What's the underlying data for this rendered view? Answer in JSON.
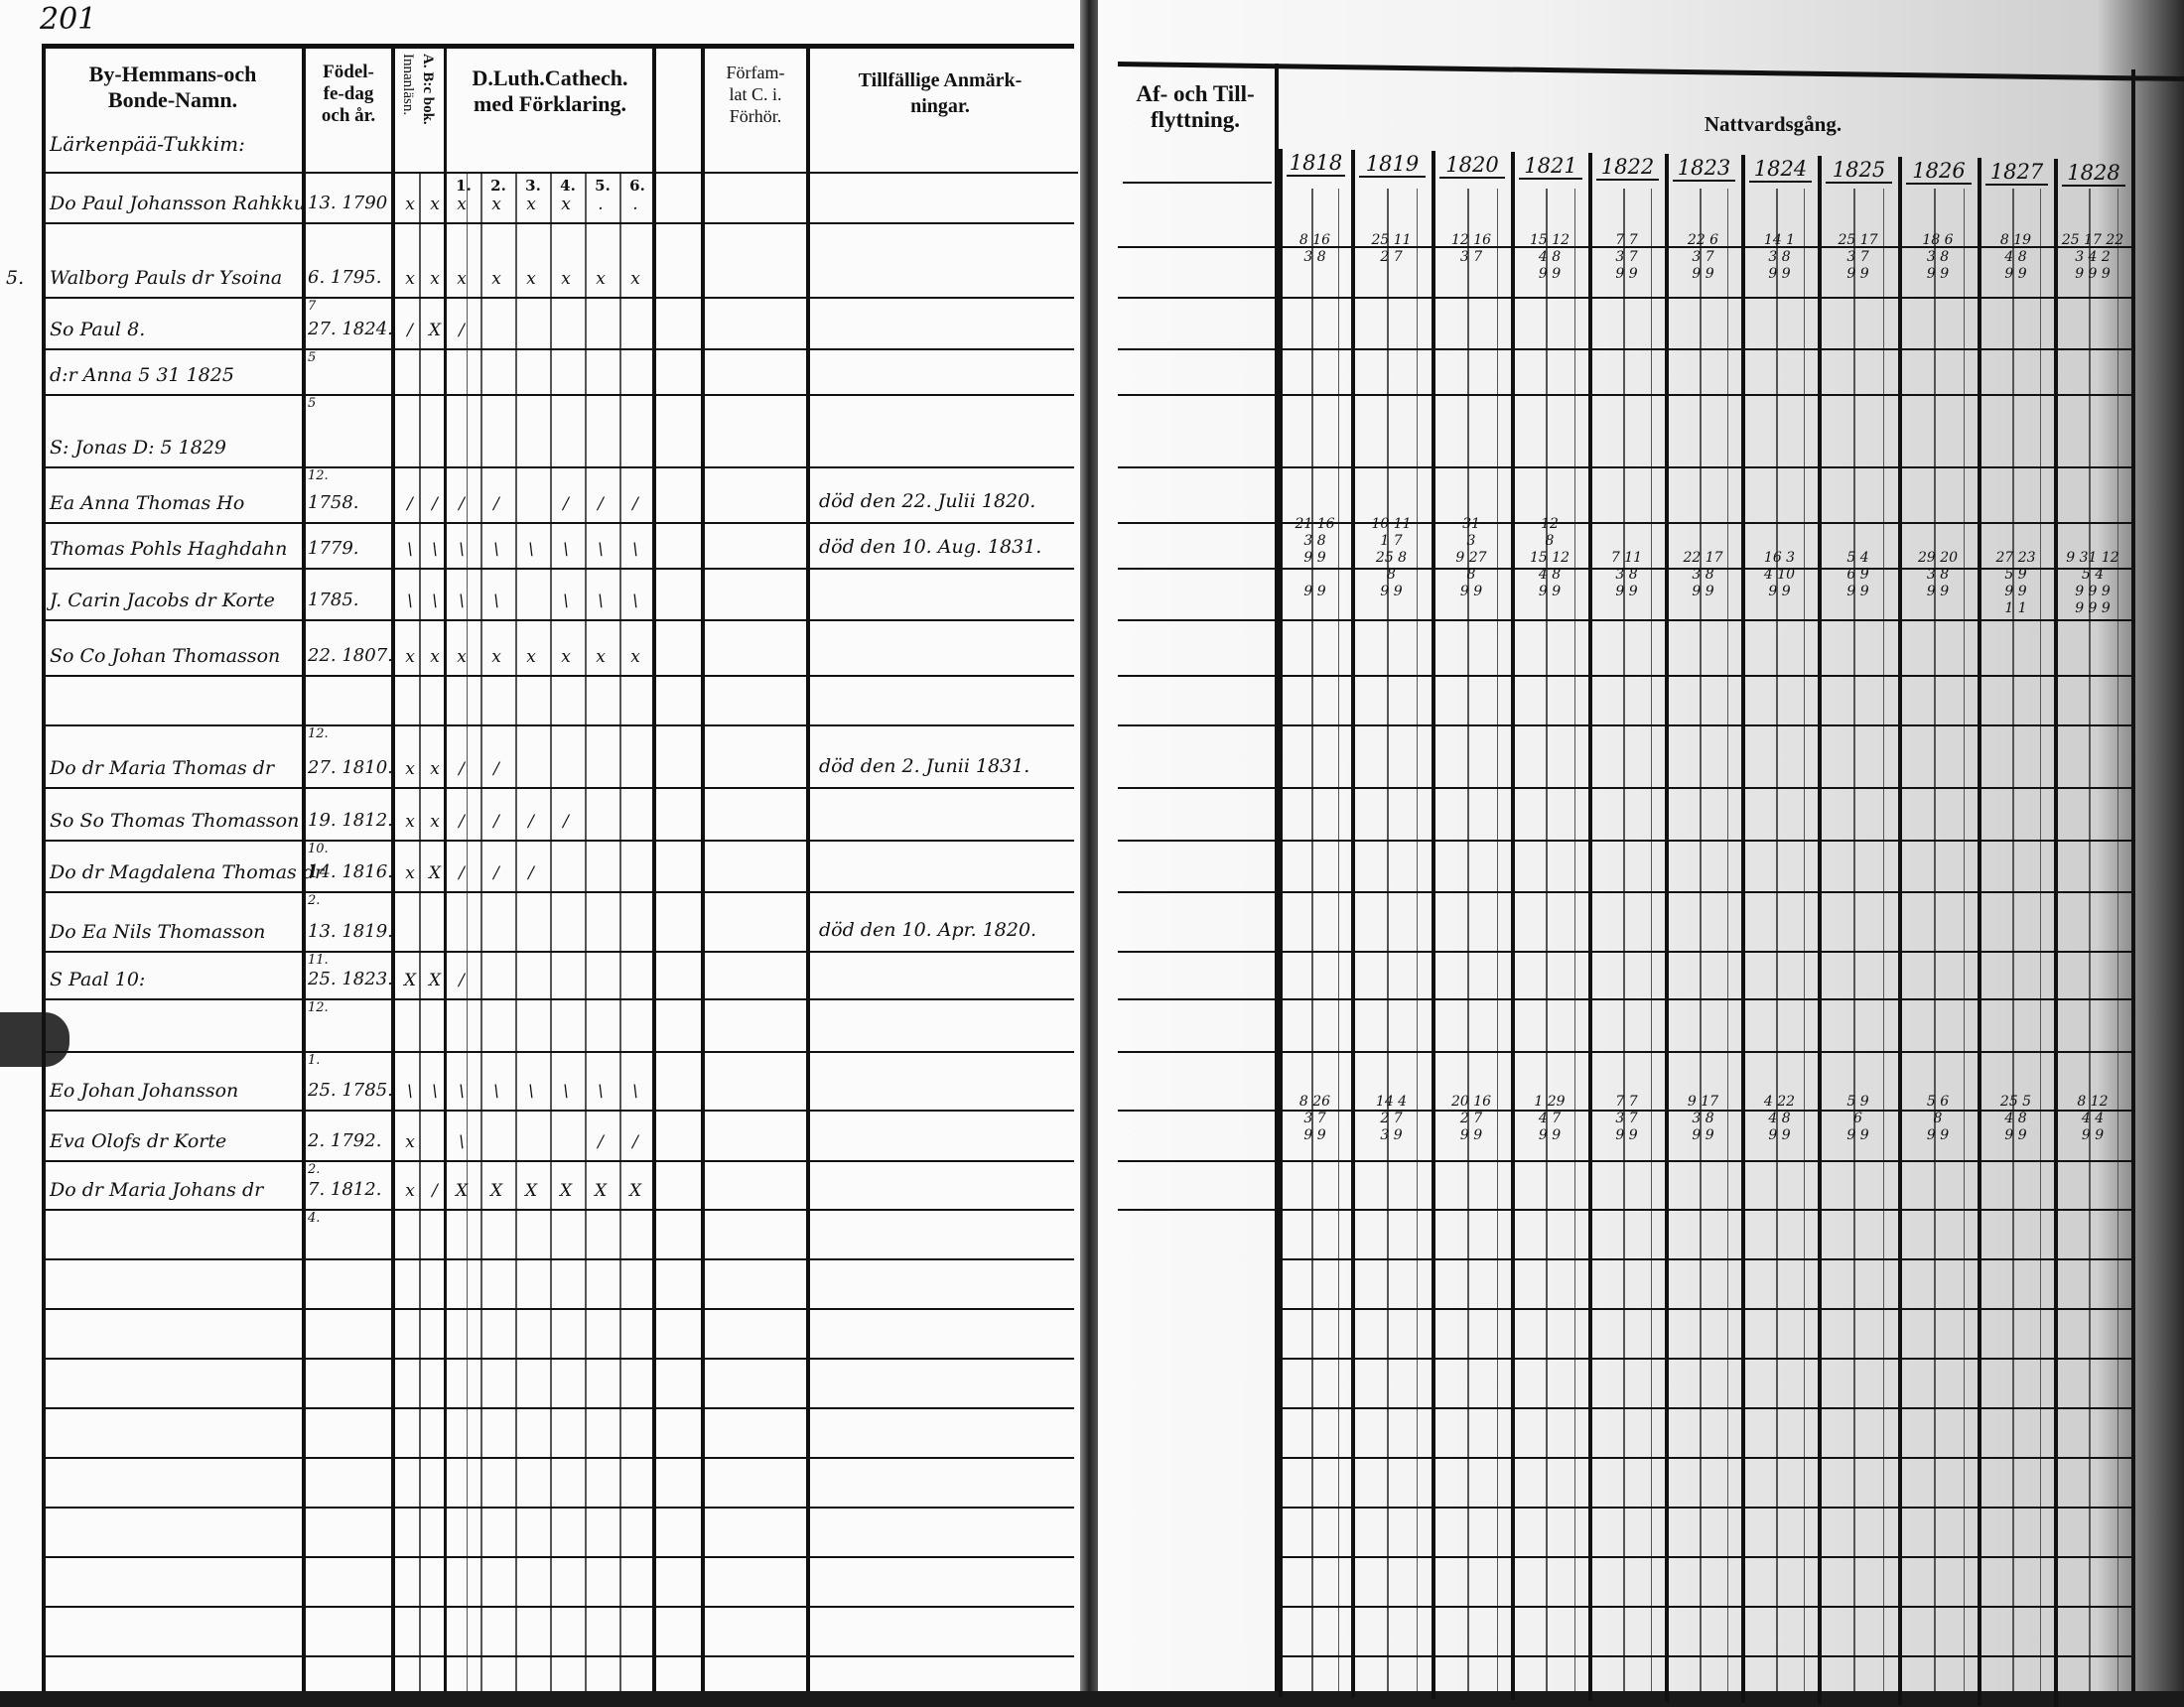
{
  "page_number": "201",
  "left": {
    "headers": {
      "name": [
        "By-Hemmans-och",
        "Bonde-Namn."
      ],
      "birth": [
        "Födel-",
        "fe-dag",
        "och år."
      ],
      "reading": [
        "A. B:c bok.",
        "Innanläsn."
      ],
      "catechism": [
        "D.Luth.Cathech.",
        "med Förklaring."
      ],
      "catechism_parts": [
        "1.",
        "2.",
        "3.",
        "4.",
        "5.",
        "6."
      ],
      "confirmation": [
        "Förfam-",
        "lat C. i.",
        "Förhör."
      ],
      "remarks": [
        "Tillfällige Anmärk-",
        "ningar."
      ]
    },
    "section_title": "Lärkenpää-Tukkim:",
    "rows": [
      {
        "name": "Do Paul Johansson Rahkku",
        "date": "13. 1790",
        "month": "",
        "marks": [
          "x",
          "x",
          "x",
          "x",
          "x",
          "x",
          ".",
          "."
        ],
        "remark": ""
      },
      {
        "name": "Walborg Pauls dr Ysoina",
        "date": "6. 1795.",
        "month": "7",
        "marks": [
          "x",
          "x",
          "x",
          "x",
          "x",
          "x",
          "x",
          "x"
        ],
        "remark": "",
        "margin": "5."
      },
      {
        "name": "So Paul 8.",
        "date": "27. 1824.",
        "month": "5",
        "marks": [
          "/",
          "X",
          "/",
          "",
          "",
          "",
          "",
          ""
        ],
        "remark": ""
      },
      {
        "name": "d:r Anna 5 31 1825",
        "date": "",
        "month": "5",
        "marks": [
          "",
          "",
          "",
          "",
          "",
          "",
          "",
          ""
        ],
        "remark": ""
      },
      {
        "name": "S: Jonas D: 5 1829",
        "date": "",
        "month": "12.",
        "marks": [
          "",
          "",
          "",
          "",
          "",
          "",
          "",
          ""
        ],
        "remark": ""
      },
      {
        "name": "Ea Anna Thomas Ho",
        "date": "1758.",
        "month": "",
        "marks": [
          "/",
          "/",
          "/",
          "/",
          "",
          "/",
          "/",
          "/"
        ],
        "remark": "död den 22. Julii 1820."
      },
      {
        "name": "Thomas Pohls Haghdahn",
        "date": "1779.",
        "month": "",
        "marks": [
          "\\",
          "\\",
          "\\",
          "\\",
          "\\",
          "\\",
          "\\",
          "\\"
        ],
        "remark": "död den 10. Aug. 1831."
      },
      {
        "name": "J. Carin Jacobs dr Korte",
        "date": "1785.",
        "month": "",
        "marks": [
          "\\",
          "\\",
          "\\",
          "\\",
          "",
          "\\",
          "\\",
          "\\"
        ],
        "remark": ""
      },
      {
        "name": "So Co Johan Thomasson",
        "date": "22. 1807.",
        "month": "",
        "marks": [
          "x",
          "x",
          "x",
          "x",
          "x",
          "x",
          "x",
          "x"
        ],
        "remark": ""
      },
      {
        "name": "",
        "date": "",
        "month": "12.",
        "marks": [
          "",
          "",
          "",
          "",
          "",
          "",
          "",
          ""
        ],
        "remark": ""
      },
      {
        "name": "Do dr Maria Thomas dr",
        "date": "27. 1810.",
        "month": "",
        "marks": [
          "x",
          "x",
          "/",
          "/",
          "",
          "",
          "",
          ""
        ],
        "remark": "död den 2. Junii 1831."
      },
      {
        "name": "So So Thomas Thomasson",
        "date": "19. 1812.",
        "month": "10.",
        "marks": [
          "x",
          "x",
          "/",
          "/",
          "/",
          "/",
          "",
          ""
        ],
        "remark": ""
      },
      {
        "name": "Do dr Magdalena Thomas dr",
        "date": "14. 1816.",
        "month": "2.",
        "marks": [
          "x",
          "X",
          "/",
          "/",
          "/",
          "",
          "",
          ""
        ],
        "remark": ""
      },
      {
        "name": "Do Ea Nils Thomasson",
        "date": "13. 1819.",
        "month": "11.",
        "marks": [
          "",
          "",
          "",
          "",
          "",
          "",
          "",
          ""
        ],
        "remark": "död den 10. Apr. 1820."
      },
      {
        "name": "S Paal 10:",
        "date": "25. 1823.",
        "month": "12.",
        "marks": [
          "X",
          "X",
          "/",
          "",
          "",
          "",
          "",
          ""
        ],
        "remark": ""
      },
      {
        "name": "",
        "date": "",
        "month": "1.",
        "marks": [
          "",
          "",
          "",
          "",
          "",
          "",
          "",
          ""
        ],
        "remark": ""
      },
      {
        "name": "Eo Johan Johansson",
        "date": "25. 1785.",
        "month": "",
        "marks": [
          "\\",
          "\\",
          "\\",
          "\\",
          "\\",
          "\\",
          "\\",
          "\\"
        ],
        "remark": ""
      },
      {
        "name": "Eva Olofs dr Korte",
        "date": "2. 1792.",
        "month": "2.",
        "marks": [
          "x",
          "",
          "\\",
          "",
          "",
          "",
          "/",
          "/"
        ],
        "remark": ""
      },
      {
        "name": "Do dr Maria Johans dr",
        "date": "7. 1812.",
        "month": "4.",
        "marks": [
          "x",
          "/",
          "X",
          "X",
          "X",
          "X",
          "X",
          "X"
        ],
        "remark": ""
      }
    ]
  },
  "right": {
    "headers": {
      "moves": [
        "Af- och Till-",
        "flyttning."
      ],
      "communion": "Nattvardsgång."
    },
    "years": [
      "1818",
      "1819",
      "1820",
      "1821",
      "1822",
      "1823",
      "1824",
      "1825",
      "1826",
      "1827",
      "1828"
    ],
    "communion_blocks": [
      {
        "lines": [
          [
            "8 16",
            "25 11",
            "12 16",
            "15 12",
            "7 7",
            "22 6",
            "14 1",
            "25 17",
            "18 6",
            "8 19",
            "25 17 22"
          ],
          [
            "3 8",
            "2 7",
            "3 7",
            "4 8",
            "3 7",
            "3 7",
            "3 8",
            "3 7",
            "3 8",
            "4 8",
            "3 4 2"
          ],
          [
            "",
            "",
            "",
            "9 9",
            "9 9",
            "9 9",
            "9 9",
            "9 9",
            "9 9",
            "9 9",
            "9 9 9"
          ]
        ]
      },
      {
        "lines": [
          [
            "21 16",
            "10 11",
            "31",
            "12",
            "",
            "",
            "",
            "",
            "",
            "",
            ""
          ],
          [
            "3 8",
            "1 7",
            "3",
            "8",
            "",
            "",
            "",
            "",
            "",
            "",
            ""
          ],
          [
            "9 9",
            "25 8",
            "9 27",
            "15 12",
            "7 11",
            "22 17",
            "16 3",
            "5 4",
            "29 20",
            "27 23",
            "9 31 12"
          ],
          [
            "",
            "8",
            "8",
            "4 8",
            "3 8",
            "3 8",
            "4 10",
            "6 9",
            "3 8",
            "5 9",
            "5 4"
          ],
          [
            "9 9",
            "9 9",
            "9 9",
            "9 9",
            "9 9",
            "9 9",
            "9 9",
            "9 9",
            "9 9",
            "9 9",
            "9 9 9"
          ],
          [
            "",
            "",
            "",
            "",
            "",
            "",
            "",
            "",
            "",
            "1 1",
            "9 9 9"
          ]
        ]
      },
      {
        "lines": [
          [
            "8 26",
            "14 4",
            "20 16",
            "1 29",
            "7 7",
            "9 17",
            "4 22",
            "5 9",
            "5 6",
            "25 5",
            "8 12"
          ],
          [
            "3 7",
            "2 7",
            "2 7",
            "4 7",
            "3 7",
            "3 8",
            "4 8",
            "6",
            "8",
            "4 8",
            "4 4"
          ],
          [
            "9 9",
            "3 9",
            "9 9",
            "9 9",
            "9 9",
            "9 9",
            "9 9",
            "9 9",
            "9 9",
            "9 9",
            "9 9"
          ]
        ]
      }
    ]
  }
}
